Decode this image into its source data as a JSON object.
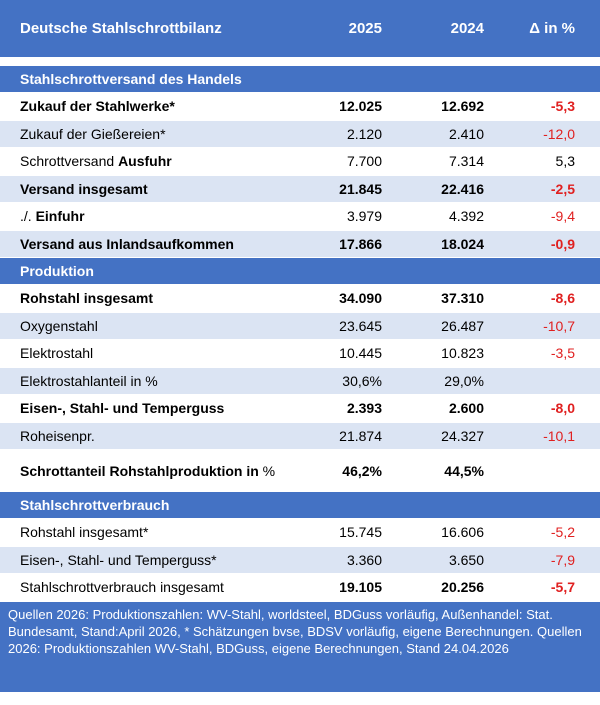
{
  "header": {
    "title": "Deutsche Stahlschrottbilanz",
    "col_2025": "2025",
    "col_2024": "2024",
    "col_delta": "Δ in %"
  },
  "sections": {
    "handel": "Stahlschrottversand des Handels",
    "produktion": "Produktion",
    "verbrauch": "Stahlschrottverbrauch"
  },
  "rows": {
    "r1": {
      "label": "Zukauf der Stahlwerke*",
      "v2025": "12.025",
      "v2024": "12.692",
      "delta": "-5,3"
    },
    "r2": {
      "label": "Zukauf der Gießereien*",
      "v2025": "2.120",
      "v2024": "2.410",
      "delta": "-12,0"
    },
    "r3": {
      "label_a": "Schrottversand ",
      "label_b": "Ausfuhr",
      "v2025": "7.700",
      "v2024": "7.314",
      "delta": "5,3"
    },
    "r4": {
      "label": "Versand insgesamt",
      "v2025": "21.845",
      "v2024": "22.416",
      "delta": "-2,5"
    },
    "r5": {
      "label_a": "./. ",
      "label_b": "Einfuhr",
      "v2025": "3.979",
      "v2024": "4.392",
      "delta": "-9,4"
    },
    "r6": {
      "label": "Versand aus Inlandsaufkommen",
      "v2025": "17.866",
      "v2024": "18.024",
      "delta": "-0,9"
    },
    "r7": {
      "label": "Rohstahl insgesamt",
      "v2025": "34.090",
      "v2024": "37.310",
      "delta": "-8,6"
    },
    "r8": {
      "label": "Oxygenstahl",
      "v2025": "23.645",
      "v2024": "26.487",
      "delta": "-10,7"
    },
    "r9": {
      "label": "Elektrostahl",
      "v2025": "10.445",
      "v2024": "10.823",
      "delta": "-3,5"
    },
    "r10": {
      "label": "Elektrostahlanteil in %",
      "v2025": "30,6%",
      "v2024": "29,0%",
      "delta": ""
    },
    "r11": {
      "label": "Eisen-, Stahl- und Temperguss",
      "v2025": "2.393",
      "v2024": "2.600",
      "delta": "-8,0"
    },
    "r12": {
      "label": "Roheisenpr.",
      "v2025": "21.874",
      "v2024": "24.327",
      "delta": "-10,1"
    },
    "r13": {
      "label_a": "Schrottanteil Rohstahlproduktion in ",
      "label_b": "%",
      "v2025": "46,2%",
      "v2024": "44,5%",
      "delta": ""
    },
    "r14": {
      "label": "Rohstahl insgesamt*",
      "v2025": "15.745",
      "v2024": "16.606",
      "delta": "-5,2"
    },
    "r15": {
      "label": "Eisen-, Stahl- und Temperguss*",
      "v2025": "3.360",
      "v2024": "3.650",
      "delta": "-7,9"
    },
    "r16": {
      "label": "Stahlschrottverbrauch insgesamt",
      "v2025": "19.105",
      "v2024": "20.256",
      "delta": "-5,7"
    }
  },
  "footer": "Quellen 2026: Produktionszahlen: WV-Stahl, worldsteel, BDGuss vorläufig, Außenhandel: Stat. Bundesamt, Stand:April 2026, * Schätzungen bvse, BDSV vorläufig, eigene Berechnungen. Quellen 2026: Produktionszahlen WV-Stahl, BDGuss, eigene Berechnungen, Stand 24.04.2026",
  "colors": {
    "header_blue": "#4472c4",
    "row_light": "#dbe4f3",
    "negative": "#e02020"
  }
}
